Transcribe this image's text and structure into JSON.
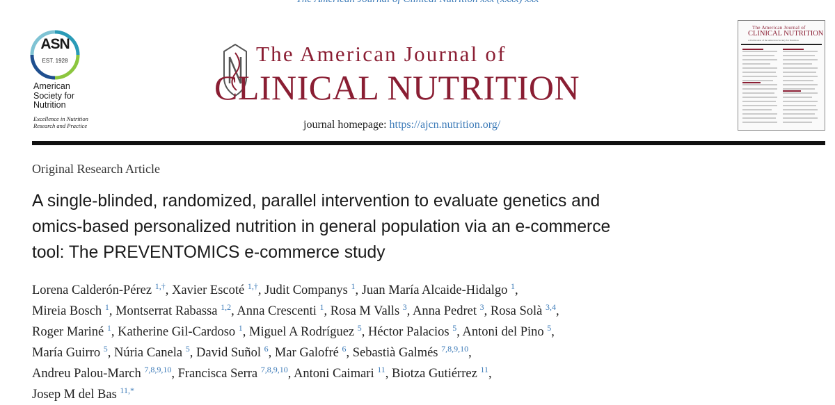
{
  "running_head": "The American Journal of Clinical Nutrition xxx (xxxx) xxx",
  "asn": {
    "abbr": "ASN",
    "est": "EST. 1928",
    "name": "American Society for Nutrition",
    "tagline": "Excellence in Nutrition Research and Practice"
  },
  "journal": {
    "line1": "The American Journal of",
    "line2": "CLINICAL NUTRITION",
    "homepage_label": "journal homepage:",
    "homepage_url": "https://ajcn.nutrition.org/"
  },
  "cover": {
    "title1": "The American Journal of",
    "title2": "CLINICAL NUTRITION",
    "subtitle": "A Publication of the American Society for Nutrition"
  },
  "article_type": "Original Research Article",
  "title_lines": [
    "A single-blinded, randomized, parallel intervention to evaluate genetics and",
    "omics-based personalized nutrition in general population via an e-commerce",
    "tool: The PREVENTOMICS e-commerce study"
  ],
  "author_lines": [
    [
      {
        "name": "Lorena Calderón-Pérez",
        "aff": "1,†"
      },
      {
        "name": "Xavier Escoté",
        "aff": "1,†"
      },
      {
        "name": "Judit Companys",
        "aff": "1"
      },
      {
        "name": "Juan María Alcaide-Hidalgo",
        "aff": "1"
      }
    ],
    [
      {
        "name": "Mireia Bosch",
        "aff": "1"
      },
      {
        "name": "Montserrat Rabassa",
        "aff": "1,2"
      },
      {
        "name": "Anna Crescenti",
        "aff": "1"
      },
      {
        "name": "Rosa M Valls",
        "aff": "3"
      },
      {
        "name": "Anna Pedret",
        "aff": "3"
      },
      {
        "name": "Rosa Solà",
        "aff": "3,4"
      }
    ],
    [
      {
        "name": "Roger Mariné",
        "aff": "1"
      },
      {
        "name": "Katherine Gil-Cardoso",
        "aff": "1"
      },
      {
        "name": "Miguel A Rodríguez",
        "aff": "5"
      },
      {
        "name": "Héctor Palacios",
        "aff": "5"
      },
      {
        "name": "Antoni del Pino",
        "aff": "5"
      }
    ],
    [
      {
        "name": "María Guirro",
        "aff": "5"
      },
      {
        "name": "Núria Canela",
        "aff": "5"
      },
      {
        "name": "David Suñol",
        "aff": "6"
      },
      {
        "name": "Mar Galofré",
        "aff": "6"
      },
      {
        "name": "Sebastià Galmés",
        "aff": "7,8,9,10"
      }
    ],
    [
      {
        "name": "Andreu Palou-March",
        "aff": "7,8,9,10"
      },
      {
        "name": "Francisca Serra",
        "aff": "7,8,9,10"
      },
      {
        "name": "Antoni Caimari",
        "aff": "11"
      },
      {
        "name": "Biotza Gutiérrez",
        "aff": "11"
      }
    ],
    [
      {
        "name": "Josep M del Bas",
        "aff": "11,*"
      }
    ]
  ],
  "colors": {
    "journal_red": "#8a1e33",
    "link_blue": "#3d7bb8",
    "asn_teal": "#2a9bb7",
    "asn_blue": "#1f4f8f",
    "asn_green": "#8cc63f"
  }
}
